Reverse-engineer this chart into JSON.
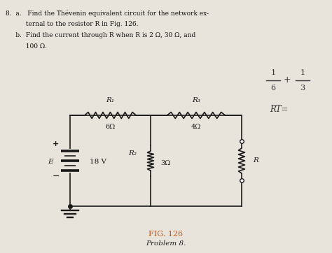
{
  "bg_color": "#e8e4dc",
  "fig_label": "FIG. 126",
  "fig_sublabel": "Problem 8.",
  "fig_label_color": "#c05818",
  "circuit": {
    "E_label": "E",
    "E_value": "18 V",
    "R1_label": "R₁",
    "R1_value": "6Ω",
    "R2_label": "R₂",
    "R2_value": "3Ω",
    "R3_label": "R₃",
    "R3_value": "4Ω",
    "R_label": "R"
  },
  "text_lines": [
    "8.  a.   Find the Thévenin equivalent circuit for the network ex-",
    "          ternal to the resistor R in Fig. 126.",
    "     b.  Find the current through R when R is 2 Ω, 30 Ω, and",
    "          100 Ω."
  ],
  "note1": "1   1",
  "note1_line": true,
  "note2": "RT=",
  "lw": 1.2
}
